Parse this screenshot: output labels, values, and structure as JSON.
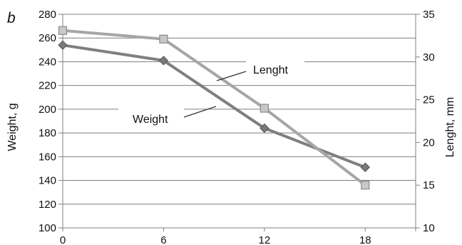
{
  "chart_data": {
    "type": "line",
    "panel_label": "b",
    "x": [
      0,
      6,
      12,
      18
    ],
    "xlim": [
      0,
      21
    ],
    "x_ticks": [
      "0",
      "6",
      "12",
      "18"
    ],
    "ylabel": "Weight, g",
    "ylim": [
      100,
      280
    ],
    "y_ticks": [
      "100",
      "120",
      "140",
      "160",
      "180",
      "200",
      "220",
      "240",
      "260",
      "280"
    ],
    "y2label": "Lenght, mm",
    "y2lim": [
      10,
      35
    ],
    "y2_ticks": [
      "10",
      "15",
      "20",
      "25",
      "30",
      "35"
    ],
    "grid": true,
    "series": [
      {
        "name": "Weight",
        "axis": "left",
        "marker": "diamond",
        "color": "#7f7f7f",
        "values": [
          254,
          241,
          184,
          151
        ]
      },
      {
        "name": "Lenght",
        "axis": "right",
        "marker": "square",
        "color": "#a6a6a6",
        "values": [
          33.1,
          32.1,
          24.0,
          15.0
        ]
      }
    ]
  }
}
